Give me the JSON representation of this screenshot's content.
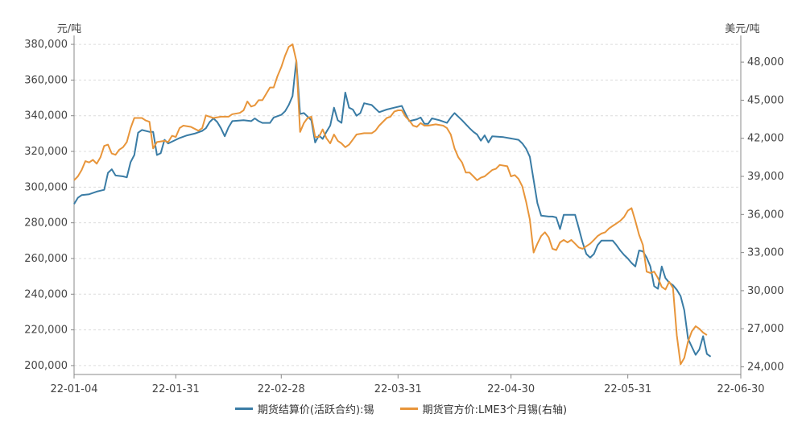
{
  "chart_data": {
    "type": "line",
    "title": "",
    "left_axis_unit": "元/吨",
    "right_axis_unit": "美元/吨",
    "left_ylim": [
      195000,
      385000
    ],
    "right_ylim": [
      23400,
      50100
    ],
    "left_ticks": [
      "200,000",
      "220,000",
      "240,000",
      "260,000",
      "280,000",
      "300,000",
      "320,000",
      "340,000",
      "360,000",
      "380,000"
    ],
    "left_tick_values": [
      200000,
      220000,
      240000,
      260000,
      280000,
      300000,
      320000,
      340000,
      360000,
      380000
    ],
    "right_ticks": [
      "24,000",
      "27,000",
      "30,000",
      "33,000",
      "36,000",
      "39,000",
      "42,000",
      "45,000",
      "48,000"
    ],
    "right_tick_values": [
      24000,
      27000,
      30000,
      33000,
      36000,
      39000,
      42000,
      45000,
      48000
    ],
    "x_ticks": [
      "22-01-04",
      "22-01-31",
      "22-02-28",
      "22-03-31",
      "22-04-30",
      "22-05-31",
      "22-06-30"
    ],
    "x_tick_days": [
      3,
      30,
      58,
      89,
      119,
      150,
      180
    ],
    "x_range_days": [
      3,
      180
    ],
    "grid": true,
    "legend_position": "bottom",
    "series": [
      {
        "name": "期货结算价(活跃合约):锡",
        "axis": "left",
        "color": "#3a7ca5",
        "points": [
          [
            3,
            290500
          ],
          [
            4,
            294000
          ],
          [
            5,
            295500
          ],
          [
            7,
            296000
          ],
          [
            9,
            297500
          ],
          [
            10,
            298000
          ],
          [
            11,
            298500
          ],
          [
            12,
            308000
          ],
          [
            13,
            310000
          ],
          [
            14,
            306500
          ],
          [
            16,
            306000
          ],
          [
            17,
            305500
          ],
          [
            18,
            314000
          ],
          [
            19,
            318000
          ],
          [
            20,
            330500
          ],
          [
            21,
            332000
          ],
          [
            23,
            331000
          ],
          [
            24,
            331000
          ],
          [
            25,
            318000
          ],
          [
            26,
            319000
          ],
          [
            27,
            326500
          ],
          [
            28,
            324500
          ],
          [
            31,
            327500
          ],
          [
            33,
            329000
          ],
          [
            35,
            330000
          ],
          [
            37,
            331500
          ],
          [
            38,
            333000
          ],
          [
            39,
            336500
          ],
          [
            40,
            338500
          ],
          [
            41,
            336500
          ],
          [
            42,
            333000
          ],
          [
            43,
            328500
          ],
          [
            44,
            333500
          ],
          [
            45,
            337000
          ],
          [
            48,
            337500
          ],
          [
            50,
            337000
          ],
          [
            51,
            338500
          ],
          [
            52,
            337000
          ],
          [
            53,
            336000
          ],
          [
            55,
            336000
          ],
          [
            56,
            339000
          ],
          [
            58,
            340500
          ],
          [
            59,
            342500
          ],
          [
            60,
            346000
          ],
          [
            61,
            351000
          ],
          [
            62,
            371000
          ],
          [
            63,
            341000
          ],
          [
            64,
            341500
          ],
          [
            65,
            339500
          ],
          [
            66,
            337500
          ],
          [
            67,
            325000
          ],
          [
            68,
            329000
          ],
          [
            69,
            327000
          ],
          [
            70,
            331000
          ],
          [
            71,
            334500
          ],
          [
            72,
            344500
          ],
          [
            73,
            337500
          ],
          [
            74,
            336000
          ],
          [
            75,
            353000
          ],
          [
            76,
            344500
          ],
          [
            77,
            343500
          ],
          [
            78,
            340000
          ],
          [
            79,
            341500
          ],
          [
            80,
            347000
          ],
          [
            82,
            346000
          ],
          [
            84,
            342000
          ],
          [
            86,
            343500
          ],
          [
            88,
            344500
          ],
          [
            90,
            345500
          ],
          [
            91,
            341000
          ],
          [
            92,
            337000
          ],
          [
            94,
            338000
          ],
          [
            95,
            339000
          ],
          [
            96,
            335500
          ],
          [
            97,
            335500
          ],
          [
            98,
            338500
          ],
          [
            100,
            337500
          ],
          [
            102,
            336000
          ],
          [
            103,
            339000
          ],
          [
            104,
            341500
          ],
          [
            106,
            337500
          ],
          [
            108,
            333000
          ],
          [
            109,
            331000
          ],
          [
            110,
            329500
          ],
          [
            111,
            326000
          ],
          [
            112,
            329000
          ],
          [
            113,
            325000
          ],
          [
            114,
            328500
          ],
          [
            117,
            328000
          ],
          [
            121,
            326500
          ],
          [
            122,
            324500
          ],
          [
            123,
            321500
          ],
          [
            124,
            317000
          ],
          [
            125,
            304000
          ],
          [
            126,
            291000
          ],
          [
            127,
            284000
          ],
          [
            129,
            283500
          ],
          [
            130,
            283500
          ],
          [
            131,
            283000
          ],
          [
            132,
            276500
          ],
          [
            133,
            284500
          ],
          [
            135,
            284500
          ],
          [
            136,
            284500
          ],
          [
            137,
            277000
          ],
          [
            138,
            269000
          ],
          [
            139,
            262500
          ],
          [
            140,
            260500
          ],
          [
            141,
            262500
          ],
          [
            142,
            267500
          ],
          [
            143,
            270000
          ],
          [
            146,
            270000
          ],
          [
            147,
            267500
          ],
          [
            148,
            264500
          ],
          [
            149,
            262000
          ],
          [
            150,
            260000
          ],
          [
            151,
            257500
          ],
          [
            152,
            255500
          ],
          [
            153,
            264500
          ],
          [
            154,
            264000
          ],
          [
            155,
            260500
          ],
          [
            156,
            255500
          ],
          [
            157,
            244500
          ],
          [
            158,
            243000
          ],
          [
            159,
            255500
          ],
          [
            160,
            249000
          ],
          [
            161,
            246500
          ],
          [
            162,
            245000
          ],
          [
            163,
            242500
          ],
          [
            164,
            239000
          ],
          [
            165,
            231000
          ],
          [
            166,
            215000
          ],
          [
            167,
            210500
          ],
          [
            168,
            206000
          ],
          [
            169,
            209000
          ],
          [
            170,
            216500
          ],
          [
            171,
            206500
          ],
          [
            172,
            205000
          ]
        ]
      },
      {
        "name": "期货官方价:LME3个月锡(右轴)",
        "axis": "right",
        "color": "#e8953a",
        "points": [
          [
            3,
            38700
          ],
          [
            4,
            39000
          ],
          [
            5,
            39500
          ],
          [
            6,
            40200
          ],
          [
            7,
            40100
          ],
          [
            8,
            40300
          ],
          [
            9,
            40000
          ],
          [
            10,
            40500
          ],
          [
            11,
            41400
          ],
          [
            12,
            41500
          ],
          [
            13,
            40800
          ],
          [
            14,
            40700
          ],
          [
            15,
            41100
          ],
          [
            16,
            41300
          ],
          [
            17,
            41700
          ],
          [
            18,
            42800
          ],
          [
            19,
            43600
          ],
          [
            21,
            43600
          ],
          [
            22,
            43400
          ],
          [
            23,
            43300
          ],
          [
            24,
            41200
          ],
          [
            25,
            41700
          ],
          [
            27,
            41800
          ],
          [
            28,
            41700
          ],
          [
            29,
            42200
          ],
          [
            30,
            42100
          ],
          [
            31,
            42800
          ],
          [
            32,
            43000
          ],
          [
            34,
            42900
          ],
          [
            36,
            42600
          ],
          [
            37,
            42800
          ],
          [
            38,
            43800
          ],
          [
            39,
            43700
          ],
          [
            40,
            43600
          ],
          [
            42,
            43700
          ],
          [
            44,
            43700
          ],
          [
            45,
            43900
          ],
          [
            47,
            44000
          ],
          [
            48,
            44200
          ],
          [
            49,
            44900
          ],
          [
            50,
            44500
          ],
          [
            51,
            44600
          ],
          [
            52,
            45000
          ],
          [
            53,
            45000
          ],
          [
            54,
            45500
          ],
          [
            55,
            46000
          ],
          [
            56,
            46000
          ],
          [
            57,
            46900
          ],
          [
            58,
            47600
          ],
          [
            59,
            48500
          ],
          [
            60,
            49200
          ],
          [
            61,
            49400
          ],
          [
            62,
            48100
          ],
          [
            63,
            42500
          ],
          [
            64,
            43200
          ],
          [
            65,
            43600
          ],
          [
            66,
            43700
          ],
          [
            67,
            42100
          ],
          [
            68,
            42100
          ],
          [
            69,
            42700
          ],
          [
            70,
            42000
          ],
          [
            71,
            41600
          ],
          [
            72,
            42300
          ],
          [
            73,
            41800
          ],
          [
            74,
            41600
          ],
          [
            75,
            41300
          ],
          [
            76,
            41500
          ],
          [
            77,
            41900
          ],
          [
            78,
            42300
          ],
          [
            80,
            42400
          ],
          [
            82,
            42400
          ],
          [
            83,
            42600
          ],
          [
            84,
            43000
          ],
          [
            86,
            43600
          ],
          [
            87,
            43700
          ],
          [
            88,
            44100
          ],
          [
            89,
            44200
          ],
          [
            90,
            44200
          ],
          [
            91,
            43700
          ],
          [
            92,
            43400
          ],
          [
            93,
            43000
          ],
          [
            94,
            42900
          ],
          [
            95,
            43200
          ],
          [
            96,
            43000
          ],
          [
            97,
            43000
          ],
          [
            99,
            43100
          ],
          [
            101,
            43000
          ],
          [
            102,
            42800
          ],
          [
            103,
            42300
          ],
          [
            104,
            41200
          ],
          [
            105,
            40500
          ],
          [
            106,
            40100
          ],
          [
            107,
            39300
          ],
          [
            108,
            39300
          ],
          [
            109,
            39000
          ],
          [
            110,
            38700
          ],
          [
            111,
            38900
          ],
          [
            112,
            39000
          ],
          [
            114,
            39500
          ],
          [
            115,
            39600
          ],
          [
            116,
            39900
          ],
          [
            118,
            39800
          ],
          [
            119,
            39000
          ],
          [
            120,
            39100
          ],
          [
            121,
            38800
          ],
          [
            122,
            38200
          ],
          [
            123,
            37000
          ],
          [
            124,
            35600
          ],
          [
            125,
            33000
          ],
          [
            126,
            33700
          ],
          [
            127,
            34300
          ],
          [
            128,
            34600
          ],
          [
            129,
            34200
          ],
          [
            130,
            33300
          ],
          [
            131,
            33200
          ],
          [
            132,
            33800
          ],
          [
            133,
            34000
          ],
          [
            134,
            33800
          ],
          [
            135,
            34000
          ],
          [
            136,
            33700
          ],
          [
            137,
            33400
          ],
          [
            138,
            33300
          ],
          [
            139,
            33500
          ],
          [
            140,
            33700
          ],
          [
            141,
            34000
          ],
          [
            142,
            34300
          ],
          [
            143,
            34500
          ],
          [
            144,
            34600
          ],
          [
            145,
            34900
          ],
          [
            146,
            35100
          ],
          [
            147,
            35300
          ],
          [
            148,
            35500
          ],
          [
            149,
            35800
          ],
          [
            150,
            36300
          ],
          [
            151,
            36500
          ],
          [
            152,
            35500
          ],
          [
            153,
            34400
          ],
          [
            154,
            33600
          ],
          [
            155,
            31500
          ],
          [
            156,
            31400
          ],
          [
            157,
            31500
          ],
          [
            158,
            31000
          ],
          [
            159,
            30300
          ],
          [
            160,
            30100
          ],
          [
            161,
            30700
          ],
          [
            162,
            30200
          ],
          [
            163,
            26500
          ],
          [
            164,
            24200
          ],
          [
            165,
            24700
          ],
          [
            166,
            26000
          ],
          [
            167,
            26800
          ],
          [
            168,
            27200
          ],
          [
            169,
            27000
          ],
          [
            170,
            26700
          ],
          [
            171,
            26500
          ]
        ]
      }
    ]
  }
}
